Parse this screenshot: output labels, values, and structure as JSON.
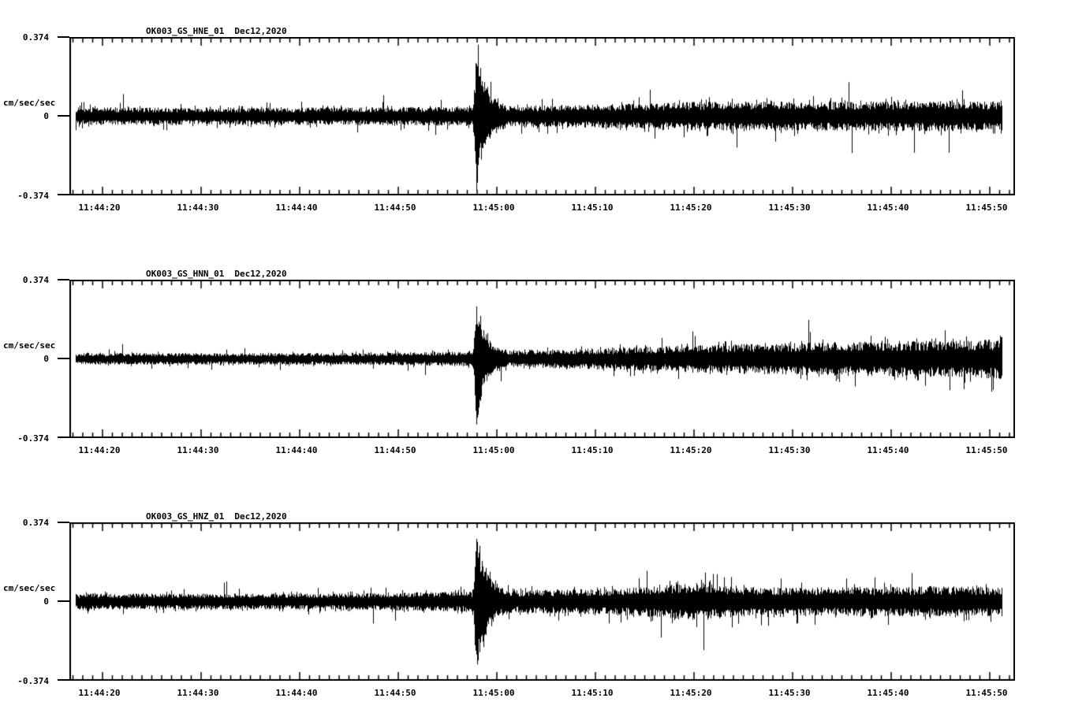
{
  "figure": {
    "background_color": "#ffffff",
    "trace_color": "#000000",
    "kind": "three-component seismic accelerogram record display",
    "station": "OK003",
    "network": "GS",
    "date": "Dec12,2020"
  },
  "chart_data": [
    {
      "type": "line",
      "title": "OK003_GS_HNE_01",
      "date_label": "Dec12,2020",
      "xlabel": "",
      "ylabel": "cm/sec/sec",
      "ylim": [
        -0.374,
        0.374
      ],
      "y_tick_values": [
        0.374,
        0,
        -0.374
      ],
      "y_tick_labels": [
        "0.374",
        "0",
        "-0.374"
      ],
      "x_axis_origin": "11:44:00",
      "x_range_seconds": [
        16.6,
        112.6
      ],
      "trace_span_seconds": [
        17.3,
        111.2
      ],
      "x_tick_seconds": [
        20,
        30,
        40,
        50,
        60,
        70,
        80,
        90,
        100,
        110
      ],
      "x_tick_labels": [
        "11:44:20",
        "11:44:30",
        "11:44:40",
        "11:44:50",
        "11:45:00",
        "11:45:10",
        "11:45:20",
        "11:45:30",
        "11:45:40",
        "11:45:50"
      ],
      "minor_tick_interval_seconds": 1,
      "event_spike": {
        "time_s": 57.9,
        "time_label": "11:44:57.9",
        "peak_amplitude": 0.327,
        "decay_s": 0.9,
        "rise_s": 0.45
      },
      "noise_envelope_t_amp": [
        [
          17.3,
          0.033
        ],
        [
          45,
          0.033
        ],
        [
          55,
          0.036
        ],
        [
          62,
          0.039
        ],
        [
          70,
          0.045
        ],
        [
          78,
          0.052
        ],
        [
          86,
          0.058
        ],
        [
          92,
          0.054
        ],
        [
          100,
          0.056
        ],
        [
          106,
          0.058
        ],
        [
          111.2,
          0.054
        ]
      ]
    },
    {
      "type": "line",
      "title": "OK003_GS_HNN_01",
      "date_label": "Dec12,2020",
      "xlabel": "",
      "ylabel": "cm/sec/sec",
      "ylim": [
        -0.374,
        0.374
      ],
      "y_tick_values": [
        0.374,
        0,
        -0.374
      ],
      "y_tick_labels": [
        "0.374",
        "0",
        "-0.374"
      ],
      "x_axis_origin": "11:44:00",
      "x_range_seconds": [
        16.6,
        112.6
      ],
      "trace_span_seconds": [
        17.3,
        111.2
      ],
      "x_tick_seconds": [
        20,
        30,
        40,
        50,
        60,
        70,
        80,
        90,
        100,
        110
      ],
      "x_tick_labels": [
        "11:44:20",
        "11:44:30",
        "11:44:40",
        "11:44:50",
        "11:45:00",
        "11:45:10",
        "11:45:20",
        "11:45:30",
        "11:45:40",
        "11:45:50"
      ],
      "minor_tick_interval_seconds": 1,
      "event_spike": {
        "time_s": 57.9,
        "time_label": "11:44:57.9",
        "peak_amplitude": 0.29,
        "decay_s": 0.9,
        "rise_s": 0.45
      },
      "noise_envelope_t_amp": [
        [
          17.3,
          0.022
        ],
        [
          45,
          0.022
        ],
        [
          55,
          0.027
        ],
        [
          62,
          0.032
        ],
        [
          70,
          0.04
        ],
        [
          78,
          0.049
        ],
        [
          86,
          0.058
        ],
        [
          94,
          0.064
        ],
        [
          102,
          0.068
        ],
        [
          108,
          0.071
        ],
        [
          110.6,
          0.074
        ],
        [
          111.2,
          0.105
        ]
      ]
    },
    {
      "type": "line",
      "title": "OK003_GS_HNZ_01",
      "date_label": "Dec12,2020",
      "xlabel": "",
      "ylabel": "cm/sec/sec",
      "ylim": [
        -0.374,
        0.374
      ],
      "y_tick_values": [
        0.374,
        0,
        -0.374
      ],
      "y_tick_labels": [
        "0.374",
        "0",
        "-0.374"
      ],
      "x_axis_origin": "11:44:00",
      "x_range_seconds": [
        16.6,
        112.6
      ],
      "trace_span_seconds": [
        17.3,
        111.2
      ],
      "x_tick_seconds": [
        20,
        30,
        40,
        50,
        60,
        70,
        80,
        90,
        100,
        110
      ],
      "x_tick_labels": [
        "11:44:20",
        "11:44:30",
        "11:44:40",
        "11:44:50",
        "11:45:00",
        "11:45:10",
        "11:45:20",
        "11:45:30",
        "11:45:40",
        "11:45:50"
      ],
      "minor_tick_interval_seconds": 1,
      "event_spike": {
        "time_s": 57.9,
        "time_label": "11:44:57.9",
        "peak_amplitude": 0.357,
        "decay_s": 0.9,
        "rise_s": 0.45
      },
      "noise_envelope_t_amp": [
        [
          17.3,
          0.03
        ],
        [
          45,
          0.031
        ],
        [
          55,
          0.038
        ],
        [
          62,
          0.043
        ],
        [
          70,
          0.048
        ],
        [
          75,
          0.056
        ],
        [
          78,
          0.068
        ],
        [
          81,
          0.071
        ],
        [
          84,
          0.058
        ],
        [
          90,
          0.053
        ],
        [
          97,
          0.054
        ],
        [
          104,
          0.058
        ],
        [
          111.2,
          0.056
        ]
      ]
    }
  ],
  "layout_note": "three stacked panels, identical time axes"
}
